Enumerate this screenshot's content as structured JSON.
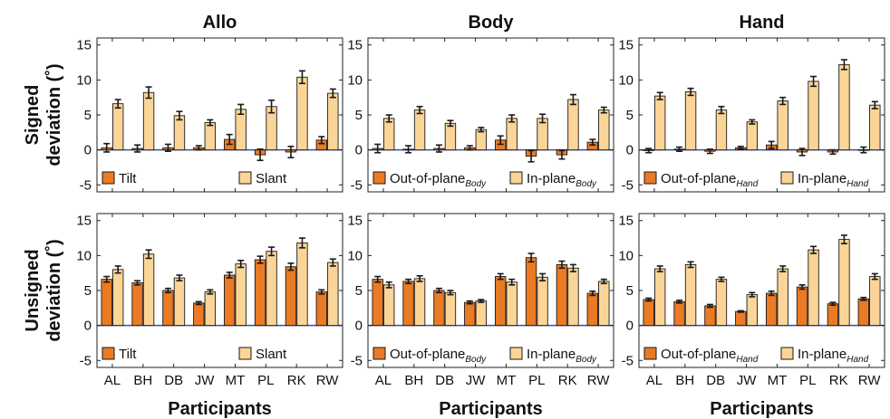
{
  "figure": {
    "xlabel": "Participants",
    "row_ylabels": [
      [
        "Signed",
        "deviation (˚)"
      ],
      [
        "Unsigned",
        "deviation (˚)"
      ]
    ],
    "colors": {
      "series_a": "#ea7a24",
      "series_b": "#fbd597",
      "edge": "#1a1a1a",
      "zero_line": "#404c9a"
    }
  },
  "chart_data": [
    {
      "type": "bar",
      "title": "Allo",
      "row": "signed",
      "categories": [
        "AL",
        "BH",
        "DB",
        "JW",
        "MT",
        "PL",
        "RK",
        "RW"
      ],
      "ylim": [
        -6,
        16
      ],
      "yticks": [
        -5,
        0,
        5,
        10,
        15
      ],
      "legend": {
        "placement": "bottom",
        "items": [
          {
            "text": "Tilt",
            "sub": ""
          },
          {
            "text": "Slant",
            "sub": ""
          }
        ]
      },
      "series": [
        {
          "values": [
            0.3,
            0.2,
            0.3,
            0.3,
            1.5,
            -0.7,
            -0.3,
            1.4
          ],
          "errors": [
            0.6,
            0.5,
            0.5,
            0.3,
            0.7,
            0.8,
            0.8,
            0.5
          ]
        },
        {
          "values": [
            6.6,
            8.2,
            4.9,
            3.9,
            5.8,
            6.2,
            10.4,
            8.1
          ],
          "errors": [
            0.6,
            0.8,
            0.6,
            0.4,
            0.7,
            0.9,
            0.9,
            0.6
          ]
        }
      ]
    },
    {
      "type": "bar",
      "title": "Body",
      "row": "signed",
      "categories": [
        "AL",
        "BH",
        "DB",
        "JW",
        "MT",
        "PL",
        "RK",
        "RW"
      ],
      "ylim": [
        -6,
        16
      ],
      "yticks": [
        -5,
        0,
        5,
        10,
        15
      ],
      "legend": {
        "placement": "bottom",
        "items": [
          {
            "text": "Out-of-plane",
            "sub": "Body"
          },
          {
            "text": "In-plane",
            "sub": "Body"
          }
        ]
      },
      "series": [
        {
          "values": [
            0.2,
            0.1,
            0.2,
            0.3,
            1.4,
            -0.9,
            -0.7,
            1.1
          ],
          "errors": [
            0.6,
            0.5,
            0.5,
            0.3,
            0.6,
            0.8,
            0.6,
            0.4
          ]
        },
        {
          "values": [
            4.5,
            5.7,
            3.8,
            2.9,
            4.5,
            4.5,
            7.2,
            5.7
          ],
          "errors": [
            0.5,
            0.5,
            0.4,
            0.3,
            0.5,
            0.6,
            0.7,
            0.4
          ]
        }
      ]
    },
    {
      "type": "bar",
      "title": "Hand",
      "row": "signed",
      "categories": [
        "AL",
        "BH",
        "DB",
        "JW",
        "MT",
        "PL",
        "RK",
        "RW"
      ],
      "ylim": [
        -6,
        16
      ],
      "yticks": [
        -5,
        0,
        5,
        10,
        15
      ],
      "legend": {
        "placement": "bottom",
        "items": [
          {
            "text": "Out-of-plane",
            "sub": "Hand"
          },
          {
            "text": "In-plane",
            "sub": "Hand"
          }
        ]
      },
      "series": [
        {
          "values": [
            -0.1,
            0.1,
            -0.2,
            0.3,
            0.7,
            -0.3,
            -0.3,
            0.0
          ],
          "errors": [
            0.3,
            0.3,
            0.3,
            0.2,
            0.5,
            0.5,
            0.3,
            0.4
          ]
        },
        {
          "values": [
            7.7,
            8.3,
            5.7,
            4.0,
            7.0,
            9.8,
            12.2,
            6.4
          ],
          "errors": [
            0.5,
            0.5,
            0.5,
            0.3,
            0.5,
            0.7,
            0.7,
            0.5
          ]
        }
      ]
    },
    {
      "type": "bar",
      "title": "",
      "row": "unsigned",
      "categories": [
        "AL",
        "BH",
        "DB",
        "JW",
        "MT",
        "PL",
        "RK",
        "RW"
      ],
      "ylim": [
        -6,
        16
      ],
      "yticks": [
        -5,
        0,
        5,
        10,
        15
      ],
      "legend": {
        "placement": "bottom",
        "items": [
          {
            "text": "Tilt",
            "sub": ""
          },
          {
            "text": "Slant",
            "sub": ""
          }
        ]
      },
      "series": [
        {
          "values": [
            6.6,
            6.1,
            5.0,
            3.2,
            7.2,
            9.4,
            8.4,
            4.8
          ],
          "errors": [
            0.4,
            0.3,
            0.3,
            0.2,
            0.4,
            0.5,
            0.5,
            0.3
          ]
        },
        {
          "values": [
            8.0,
            10.2,
            6.8,
            4.8,
            8.8,
            10.6,
            11.8,
            9.0
          ],
          "errors": [
            0.5,
            0.6,
            0.4,
            0.3,
            0.5,
            0.6,
            0.7,
            0.5
          ]
        }
      ]
    },
    {
      "type": "bar",
      "title": "",
      "row": "unsigned",
      "categories": [
        "AL",
        "BH",
        "DB",
        "JW",
        "MT",
        "PL",
        "RK",
        "RW"
      ],
      "ylim": [
        -6,
        16
      ],
      "yticks": [
        -5,
        0,
        5,
        10,
        15
      ],
      "legend": {
        "placement": "bottom",
        "items": [
          {
            "text": "Out-of-plane",
            "sub": "Body"
          },
          {
            "text": "In-plane",
            "sub": "Body"
          }
        ]
      },
      "series": [
        {
          "values": [
            6.6,
            6.3,
            5.0,
            3.3,
            7.0,
            9.7,
            8.7,
            4.6
          ],
          "errors": [
            0.4,
            0.3,
            0.3,
            0.2,
            0.4,
            0.6,
            0.5,
            0.3
          ]
        },
        {
          "values": [
            5.8,
            6.7,
            4.7,
            3.5,
            6.2,
            6.9,
            8.2,
            6.3
          ],
          "errors": [
            0.4,
            0.4,
            0.3,
            0.2,
            0.4,
            0.5,
            0.5,
            0.3
          ]
        }
      ]
    },
    {
      "type": "bar",
      "title": "",
      "row": "unsigned",
      "categories": [
        "AL",
        "BH",
        "DB",
        "JW",
        "MT",
        "PL",
        "RK",
        "RW"
      ],
      "ylim": [
        -6,
        16
      ],
      "yticks": [
        -5,
        0,
        5,
        10,
        15
      ],
      "legend": {
        "placement": "bottom",
        "items": [
          {
            "text": "Out-of-plane",
            "sub": "Hand"
          },
          {
            "text": "In-plane",
            "sub": "Hand"
          }
        ]
      },
      "series": [
        {
          "values": [
            3.7,
            3.4,
            2.8,
            2.0,
            4.6,
            5.5,
            3.1,
            3.8
          ],
          "errors": [
            0.2,
            0.2,
            0.2,
            0.1,
            0.3,
            0.3,
            0.2,
            0.2
          ]
        },
        {
          "values": [
            8.1,
            8.7,
            6.6,
            4.4,
            8.1,
            10.8,
            12.3,
            7.0
          ],
          "errors": [
            0.4,
            0.4,
            0.3,
            0.3,
            0.4,
            0.5,
            0.6,
            0.4
          ]
        }
      ]
    }
  ]
}
